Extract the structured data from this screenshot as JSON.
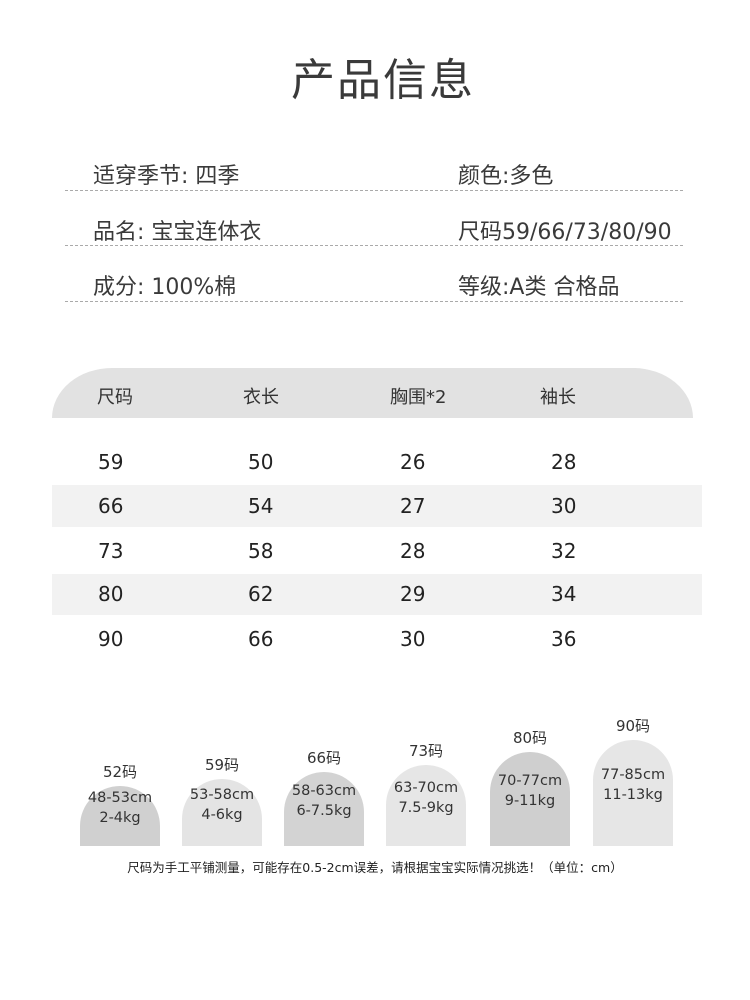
{
  "title": "产品信息",
  "info": [
    {
      "left": "适穿季节: 四季",
      "right": "颜色:多色"
    },
    {
      "left": "品名: 宝宝连体衣",
      "right": "尺码59/66/73/80/90"
    },
    {
      "left": "成分: 100%棉",
      "right": "等级:A类 合格品"
    }
  ],
  "table": {
    "headers": [
      "尺码",
      "衣长",
      "胸围*2",
      "袖长"
    ],
    "rows": [
      [
        "59",
        "50",
        "26",
        "28"
      ],
      [
        "66",
        "54",
        "27",
        "30"
      ],
      [
        "73",
        "58",
        "28",
        "32"
      ],
      [
        "80",
        "62",
        "29",
        "34"
      ],
      [
        "90",
        "66",
        "30",
        "36"
      ]
    ]
  },
  "sizes": [
    {
      "label": "52码",
      "height": "48-53cm",
      "weight": "2-4kg",
      "color": "#d0d0d0"
    },
    {
      "label": "59码",
      "height": "53-58cm",
      "weight": "4-6kg",
      "color": "#e4e4e4"
    },
    {
      "label": "66码",
      "height": "58-63cm",
      "weight": "6-7.5kg",
      "color": "#d3d3d3"
    },
    {
      "label": "73码",
      "height": "63-70cm",
      "weight": "7.5-9kg",
      "color": "#e6e6e6"
    },
    {
      "label": "80码",
      "height": "70-77cm",
      "weight": "9-11kg",
      "color": "#cfcfcf"
    },
    {
      "label": "90码",
      "height": "77-85cm",
      "weight": "11-13kg",
      "color": "#e6e6e6"
    }
  ],
  "note": "尺码为手工平铺测量，可能存在0.5-2cm误差，请根据宝宝实际情况挑选！（单位：cm）"
}
